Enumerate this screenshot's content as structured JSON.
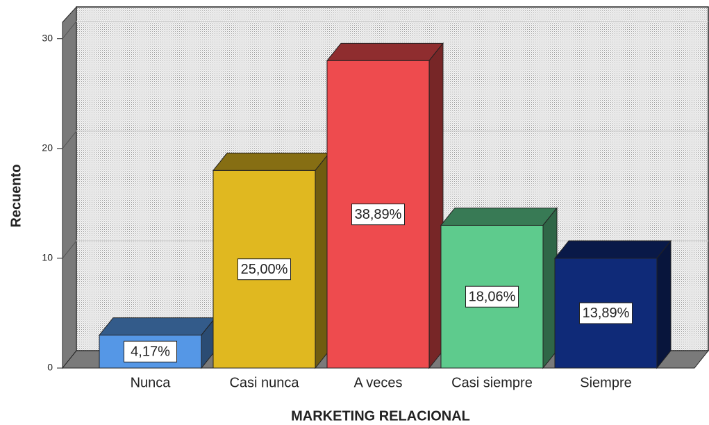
{
  "chart_data": {
    "type": "bar3d",
    "x_label": "MARKETING RELACIONAL",
    "y_label": "Recuento",
    "categories": [
      "Nunca",
      "Casi nunca",
      "A veces",
      "Casi siempre",
      "Siempre"
    ],
    "values": [
      3,
      18,
      28,
      13,
      10
    ],
    "percentages": [
      4.17,
      25.0,
      38.89,
      18.06,
      13.89
    ],
    "percentage_labels": [
      "4,17%",
      "25,00%",
      "38,89%",
      "18,06%",
      "13,89%"
    ],
    "colors": [
      "#5597e6",
      "#e0b820",
      "#ee4b4e",
      "#5ecb8d",
      "#0f2a78"
    ],
    "ylim": [
      0,
      31.5
    ],
    "yticks": [
      0,
      10,
      20,
      30
    ],
    "grid": true
  }
}
